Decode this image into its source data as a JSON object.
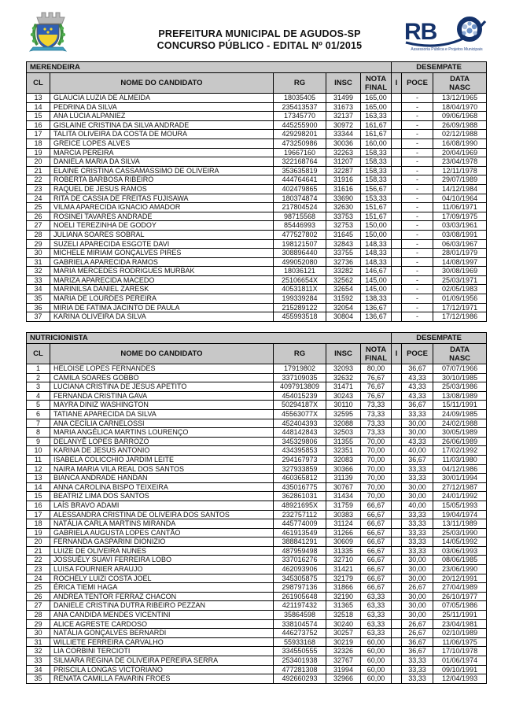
{
  "header": {
    "title_line1": "PREFEITURA MUNICIPAL DE AGUDOS-SP",
    "title_line2": "CONCURSO PÚBLICO - EDITAL Nº 01/2015",
    "crest_name": "agudos-municipal-coat-of-arms",
    "rbo": {
      "text": "RBO",
      "subtitle": "Assessoria Pública e Projetos Municipais"
    }
  },
  "colors": {
    "header_gray": "#c8c8c8",
    "rbo_navy": "#14326b",
    "rbo_light_blue": "#6f94c9",
    "border_black": "#000000"
  },
  "column_headers": {
    "cl": "CL",
    "nome": "NOME DO CANDIDATO",
    "rg": "RG",
    "insc": "INSC",
    "nota_final": "NOTA\nFINAL",
    "i": "I",
    "poce": "POCE",
    "data_nasc": "DATA\nNASC",
    "desempate": "DESEMPATE"
  },
  "tables": [
    {
      "title": "MERENDEIRA",
      "rows": [
        [
          "13",
          "GLAUCIA LUZIA DE ALMEIDA",
          "18035405",
          "31499",
          "165,00",
          "",
          "-",
          "13/12/1965"
        ],
        [
          "14",
          "PEDRINA DA SILVA",
          "235413537",
          "31673",
          "165,00",
          "",
          "-",
          "18/04/1970"
        ],
        [
          "15",
          "ANA LÚCIA ALPANIEZ",
          "17345770",
          "32137",
          "163,33",
          "",
          "-",
          "09/06/1968"
        ],
        [
          "16",
          "GISLAINE CRISTINA DA SILVA ANDRADE",
          "445255900",
          "30972",
          "161,67",
          "",
          "-",
          "26/09/1988"
        ],
        [
          "17",
          "TALITA OLIVEIRA DA COSTA DE MOURA",
          "429298201",
          "33344",
          "161,67",
          "",
          "-",
          "02/12/1988"
        ],
        [
          "18",
          "GREICE LOPES ALVES",
          "473250986",
          "30036",
          "160,00",
          "",
          "-",
          "16/08/1990"
        ],
        [
          "19",
          "MARCIA PEREIRA",
          "19667160",
          "32263",
          "158,33",
          "",
          "-",
          "20/04/1969"
        ],
        [
          "20",
          "DANIELA MARIA DA SILVA",
          "322168764",
          "31207",
          "158,33",
          "",
          "-",
          "23/04/1978"
        ],
        [
          "21",
          "ELAINE CRISTINA CASSAMASSIMO DE OLIVEIRA",
          "353635819",
          "32287",
          "158,33",
          "",
          "-",
          "12/11/1978"
        ],
        [
          "22",
          "ROBERTA BARBOSA RIBEIRO",
          "444764641",
          "31916",
          "158,33",
          "",
          "-",
          "29/07/1989"
        ],
        [
          "23",
          "RAQUEL DE JESUS RAMOS",
          "402479865",
          "31616",
          "156,67",
          "",
          "-",
          "14/12/1984"
        ],
        [
          "24",
          "RITA DE CASSIA DE FREITAS FUJISAWA",
          "180374874",
          "33690",
          "153,33",
          "",
          "-",
          "04/10/1964"
        ],
        [
          "25",
          "VILMA APARECIDA IGNACIO AMADOR",
          "217804524",
          "32630",
          "151,67",
          "",
          "-",
          "11/06/1971"
        ],
        [
          "26",
          "ROSINEI TAVARES ANDRADE",
          "98715568",
          "33753",
          "151,67",
          "",
          "-",
          "17/09/1975"
        ],
        [
          "27",
          "NOELI TEREZINHA DE GODOY",
          "85446993",
          "32753",
          "150,00",
          "",
          "-",
          "03/03/1961"
        ],
        [
          "28",
          "JULIANA SOARES SOBRAL",
          "477527802",
          "31645",
          "150,00",
          "",
          "-",
          "03/08/1991"
        ],
        [
          "29",
          "SUZELI APARECIDA ESGOTE DAVI",
          "198121507",
          "32843",
          "148,33",
          "",
          "-",
          "06/03/1967"
        ],
        [
          "30",
          "MICHELE MIRIAM GONÇALVES PIRES",
          "308896440",
          "33755",
          "148,33",
          "",
          "-",
          "28/01/1979"
        ],
        [
          "31",
          "GABRIELA APARECIDA RAMOS",
          "499052080",
          "32736",
          "148,33",
          "",
          "-",
          "14/08/1997"
        ],
        [
          "32",
          "MARIA MERCEDES RODRIGUES MURBAK",
          "18036121",
          "33282",
          "146,67",
          "",
          "-",
          "30/08/1969"
        ],
        [
          "33",
          "MARIZA APARECIDA MACEDO",
          "25106654X",
          "32562",
          "145,00",
          "",
          "-",
          "25/03/1971"
        ],
        [
          "34",
          "MARINILSA DANIEL ZARESK",
          "40531811X",
          "32654",
          "145,00",
          "",
          "-",
          "02/05/1983"
        ],
        [
          "35",
          "MARIA DE LOURDES PEREIRA",
          "199339284",
          "31592",
          "138,33",
          "",
          "-",
          "01/09/1956"
        ],
        [
          "36",
          "MIRIA DE FATIMA JACINTO DE PAULA",
          "215289122",
          "32054",
          "136,67",
          "",
          "-",
          "17/12/1971"
        ],
        [
          "37",
          "KARINA OLIVEIRA DA SILVA",
          "455993518",
          "30804",
          "136,67",
          "",
          "-",
          "17/12/1986"
        ]
      ]
    },
    {
      "title": "NUTRICIONISTA",
      "rows": [
        [
          "1",
          "HELOISE LOPES FERNANDES",
          "17919802",
          "32093",
          "80,00",
          "",
          "36,67",
          "07/07/1966"
        ],
        [
          "2",
          "CAMILA SOARES GOBBO",
          "337109035",
          "32632",
          "76,67",
          "",
          "43,33",
          "30/10/1985"
        ],
        [
          "3",
          "LUCIANA CRISTINA DE JESUS APETITO",
          "4097913809",
          "31471",
          "76,67",
          "",
          "43,33",
          "25/03/1986"
        ],
        [
          "4",
          "FERNANDA CRISTINA GAVA",
          "454015239",
          "30243",
          "76,67",
          "",
          "43,33",
          "13/08/1989"
        ],
        [
          "5",
          "MAYRA DINIZ WASHINGTON",
          "50294187X",
          "30110",
          "73,33",
          "",
          "36,67",
          "15/11/1991"
        ],
        [
          "6",
          "TATIANE APARECIDA DA SILVA",
          "45563077X",
          "32595",
          "73,33",
          "",
          "33,33",
          "24/09/1985"
        ],
        [
          "7",
          "ANA CECÍLIA CARNELOSSI",
          "452404393",
          "32088",
          "73,33",
          "",
          "30,00",
          "24/02/1988"
        ],
        [
          "8",
          "MARIA ANGÉLICA MARTINS LOURENÇO",
          "448142843",
          "32503",
          "73,33",
          "",
          "30,00",
          "30/05/1989"
        ],
        [
          "9",
          "DELANYÊ LOPES BARROZO",
          "345329806",
          "31355",
          "70,00",
          "",
          "43,33",
          "26/06/1989"
        ],
        [
          "10",
          "KARINA DE JESUS ANTONIO",
          "434395853",
          "32351",
          "70,00",
          "",
          "40,00",
          "17/02/1992"
        ],
        [
          "11",
          "ISABELA COLICCHIO JARDIM LEITE",
          "294167973",
          "32083",
          "70,00",
          "",
          "36,67",
          "11/03/1980"
        ],
        [
          "12",
          "NAIRA MARIA VILA REAL DOS SANTOS",
          "327933859",
          "30366",
          "70,00",
          "",
          "33,33",
          "04/12/1986"
        ],
        [
          "13",
          "BIANCA ANDRADE HANDAN",
          "460365812",
          "31139",
          "70,00",
          "",
          "33,33",
          "30/01/1994"
        ],
        [
          "14",
          "ANNA CAROLINA BISPO TEIXEIRA",
          "435016775",
          "30767",
          "70,00",
          "",
          "30,00",
          "27/12/1987"
        ],
        [
          "15",
          "BEATRIZ LIMA DOS SANTOS",
          "362861031",
          "31434",
          "70,00",
          "",
          "30,00",
          "24/01/1992"
        ],
        [
          "16",
          "LAÍS BRAVO ADAMI",
          "48921695X",
          "31759",
          "66,67",
          "",
          "40,00",
          "15/05/1993"
        ],
        [
          "17",
          "ALESSANDRA CRISTINA DE OLIVEIRA DOS SANTOS",
          "232757112",
          "30383",
          "66,67",
          "",
          "33,33",
          "19/04/1974"
        ],
        [
          "18",
          "NATÁLIA CARLA MARTINS MIRANDA",
          "445774009",
          "31124",
          "66,67",
          "",
          "33,33",
          "13/11/1989"
        ],
        [
          "19",
          "GABRIELA AUGUSTA LOPES CANTÃO",
          "461913549",
          "31266",
          "66,67",
          "",
          "33,33",
          "25/03/1990"
        ],
        [
          "20",
          "FERNANDA GASPARINI DIONIZIO",
          "388841291",
          "30609",
          "66,67",
          "",
          "33,33",
          "14/05/1992"
        ],
        [
          "21",
          "LUIZE DE OLIVEIRA NUNES",
          "487959498",
          "31335",
          "66,67",
          "",
          "33,33",
          "03/06/1993"
        ],
        [
          "22",
          "JOSSUÉLY SUAVI FERREIRA LOBO",
          "337016276",
          "32710",
          "66,67",
          "",
          "30,00",
          "08/06/1985"
        ],
        [
          "23",
          "LUISA FOURNIER ARAUJO",
          "462093906",
          "31421",
          "66,67",
          "",
          "30,00",
          "23/06/1990"
        ],
        [
          "24",
          "ROCHELY LUIZI COSTA JOEL",
          "345305875",
          "32179",
          "66,67",
          "",
          "30,00",
          "20/12/1991"
        ],
        [
          "25",
          "ÉRICA TIEMI HAGA",
          "298797136",
          "31866",
          "66,67",
          "",
          "26,67",
          "27/04/1989"
        ],
        [
          "26",
          "ANDREA TENTOR FERRAZ CHACON",
          "261905648",
          "32190",
          "63,33",
          "",
          "30,00",
          "26/10/1977"
        ],
        [
          "27",
          "DANIELE CRISTINA DUTRA RIBEIRO PEZZAN",
          "421197432",
          "31365",
          "63,33",
          "",
          "30,00",
          "07/05/1986"
        ],
        [
          "28",
          "ANA CANDIDA MENDES VICENTINI",
          "35864598",
          "32518",
          "63,33",
          "",
          "30,00",
          "25/11/1991"
        ],
        [
          "29",
          "ALICE AGRESTE CARDOSO",
          "338104574",
          "30240",
          "63,33",
          "",
          "26,67",
          "23/04/1981"
        ],
        [
          "30",
          "NATÁLIA GONÇALVES BERNARDI",
          "446273752",
          "30257",
          "63,33",
          "",
          "26,67",
          "02/10/1989"
        ],
        [
          "31",
          "WILLIETE FERREIRA CARVALHO",
          "55933168",
          "30219",
          "60,00",
          "",
          "36,67",
          "11/06/1975"
        ],
        [
          "32",
          "LIA CORBINI TERCIOTI",
          "334550555",
          "32326",
          "60,00",
          "",
          "36,67",
          "17/10/1978"
        ],
        [
          "33",
          "SILMARA REGINA DE OLIVEIRA PEREIRA SERRA",
          "253401938",
          "32767",
          "60,00",
          "",
          "33,33",
          "01/06/1974"
        ],
        [
          "34",
          "PRISCILA LONGAS VICTORIANO",
          "477281308",
          "31994",
          "60,00",
          "",
          "33,33",
          "09/10/1991"
        ],
        [
          "35",
          "RENATA CAMILLA FAVARIN FROES",
          "492660293",
          "32966",
          "60,00",
          "",
          "33,33",
          "12/04/1993"
        ]
      ]
    }
  ]
}
